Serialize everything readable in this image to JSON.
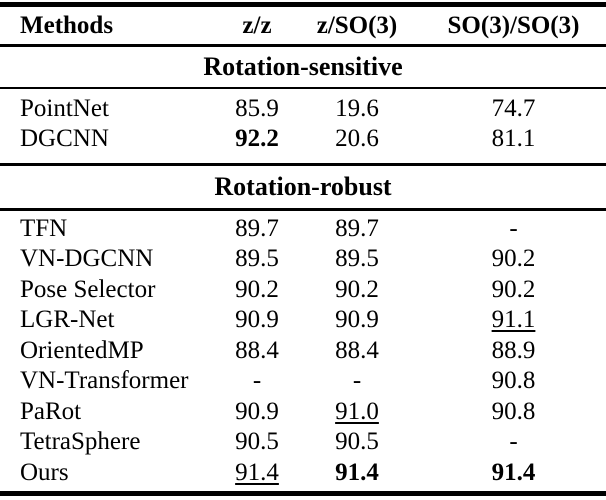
{
  "table": {
    "columns": [
      "Methods",
      "z/z",
      "z/SO(3)",
      "SO(3)/SO(3)"
    ],
    "sections": [
      {
        "title": "Rotation-sensitive",
        "rows": [
          {
            "method": "PointNet",
            "cells": [
              {
                "text": "85.9",
                "style": "plain"
              },
              {
                "text": "19.6",
                "style": "plain"
              },
              {
                "text": "74.7",
                "style": "plain"
              }
            ]
          },
          {
            "method": "DGCNN",
            "cells": [
              {
                "text": "92.2",
                "style": "bold"
              },
              {
                "text": "20.6",
                "style": "plain"
              },
              {
                "text": "81.1",
                "style": "plain"
              }
            ]
          }
        ]
      },
      {
        "title": "Rotation-robust",
        "rows": [
          {
            "method": "TFN",
            "cells": [
              {
                "text": "89.7",
                "style": "plain"
              },
              {
                "text": "89.7",
                "style": "plain"
              },
              {
                "text": "-",
                "style": "plain"
              }
            ]
          },
          {
            "method": "VN-DGCNN",
            "cells": [
              {
                "text": "89.5",
                "style": "plain"
              },
              {
                "text": "89.5",
                "style": "plain"
              },
              {
                "text": "90.2",
                "style": "plain"
              }
            ]
          },
          {
            "method": "Pose Selector",
            "cells": [
              {
                "text": "90.2",
                "style": "plain"
              },
              {
                "text": "90.2",
                "style": "plain"
              },
              {
                "text": "90.2",
                "style": "plain"
              }
            ]
          },
          {
            "method": "LGR-Net",
            "cells": [
              {
                "text": "90.9",
                "style": "plain"
              },
              {
                "text": "90.9",
                "style": "plain"
              },
              {
                "text": "91.1",
                "style": "underline"
              }
            ]
          },
          {
            "method": "OrientedMP",
            "cells": [
              {
                "text": "88.4",
                "style": "plain"
              },
              {
                "text": "88.4",
                "style": "plain"
              },
              {
                "text": "88.9",
                "style": "plain"
              }
            ]
          },
          {
            "method": "VN-Transformer",
            "cells": [
              {
                "text": "-",
                "style": "plain"
              },
              {
                "text": "-",
                "style": "plain"
              },
              {
                "text": "90.8",
                "style": "plain"
              }
            ]
          },
          {
            "method": "PaRot",
            "cells": [
              {
                "text": "90.9",
                "style": "plain"
              },
              {
                "text": "91.0",
                "style": "underline"
              },
              {
                "text": "90.8",
                "style": "plain"
              }
            ]
          },
          {
            "method": "TetraSphere",
            "cells": [
              {
                "text": "90.5",
                "style": "plain"
              },
              {
                "text": "90.5",
                "style": "plain"
              },
              {
                "text": "-",
                "style": "plain"
              }
            ]
          },
          {
            "method": "Ours",
            "cells": [
              {
                "text": "91.4",
                "style": "underline"
              },
              {
                "text": "91.4",
                "style": "bold"
              },
              {
                "text": "91.4",
                "style": "bold"
              }
            ]
          }
        ]
      }
    ]
  }
}
